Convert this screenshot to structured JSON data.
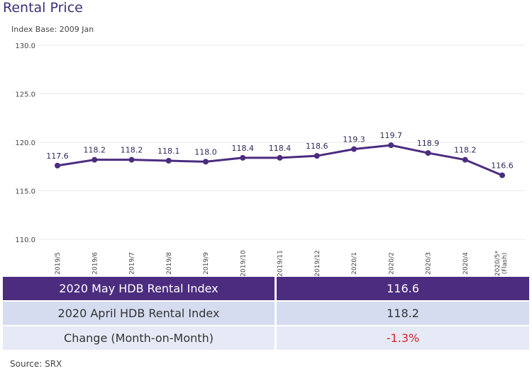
{
  "title": "Rental Price",
  "subtitle": "Index Base: 2009 Jan",
  "chart_data": {
    "type": "line",
    "categories": [
      "2019/5",
      "2019/6",
      "2019/7",
      "2019/8",
      "2019/9",
      "2019/10",
      "2019/11",
      "2019/12",
      "2020/1",
      "2020/2",
      "2020/3",
      "2020/4",
      "2020/5* (Flash)"
    ],
    "values": [
      117.6,
      118.2,
      118.2,
      118.1,
      118.0,
      118.4,
      118.4,
      118.6,
      119.3,
      119.7,
      118.9,
      118.2,
      116.6
    ],
    "ylim": [
      110,
      130
    ],
    "yticks": [
      "110.0",
      "115.0",
      "120.0",
      "125.0",
      "130.0"
    ],
    "grid": true,
    "color": "#4b2c7f"
  },
  "table": {
    "rows": [
      {
        "label": "2020 May HDB Rental Index",
        "value": "116.6"
      },
      {
        "label": "2020 April HDB Rental Index",
        "value": "118.2"
      },
      {
        "label": "Change (Month-on-Month)",
        "value": "-1.3%"
      }
    ]
  },
  "source": "Source: SRX"
}
